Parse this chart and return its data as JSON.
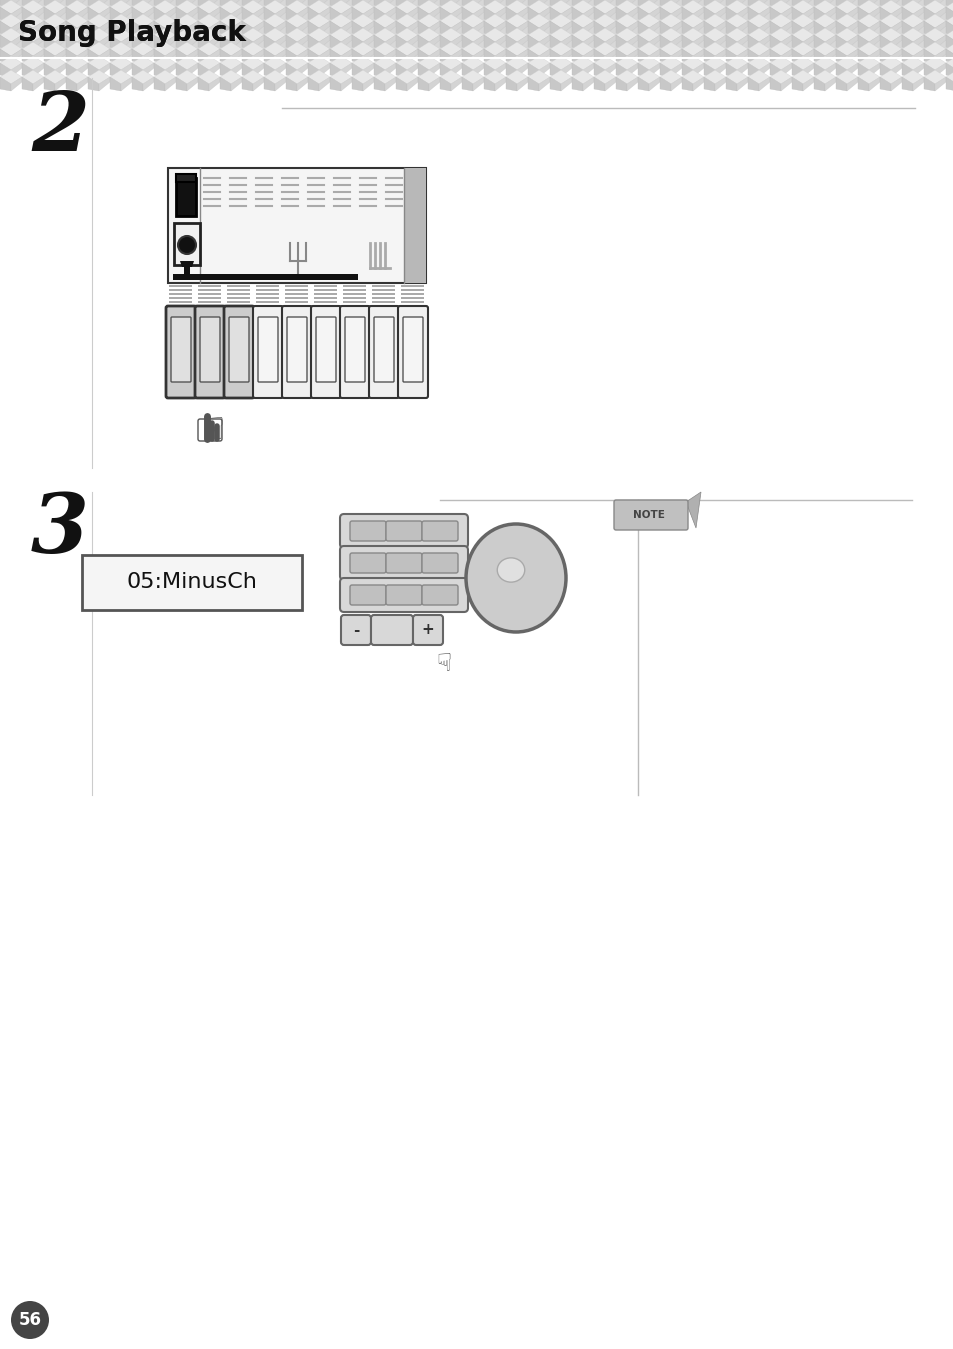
{
  "title": "Song Playback",
  "step2_label": "2",
  "step3_label": "3",
  "lcd_text": "05:MinusCh",
  "note_label": "NOTE",
  "page_number": "56",
  "bg_color": "#ffffff",
  "header_light": "#e8e8e8",
  "header_mid": "#d0d0d0",
  "header_dark": "#b8b8b8",
  "line_color": "#bbbbbb",
  "panel_border": "#333333",
  "key_fill": "#cccccc",
  "key_fill_dark": "#999999",
  "btn_fill": "#cccccc",
  "dial_fill": "#bbbbbb"
}
